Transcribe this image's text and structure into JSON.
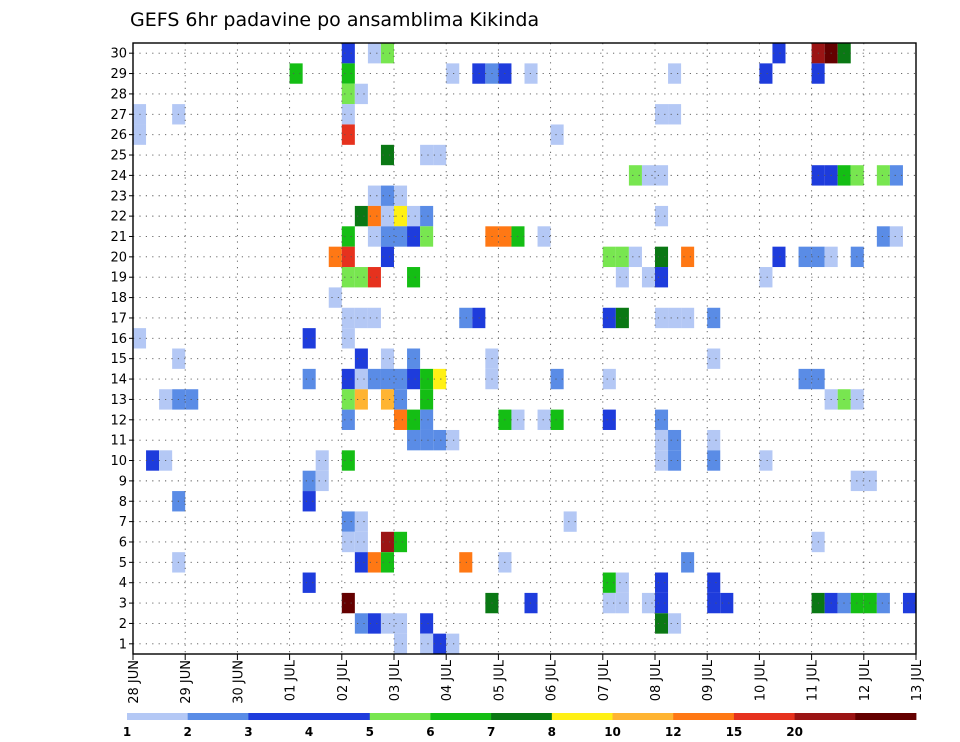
{
  "chart_data": {
    "type": "heatmap",
    "title": "GEFS 6hr padavine po ansamblima Kikinda",
    "x_axis": {
      "ticks": [
        "28 JUN",
        "29 JUN",
        "30 JUN",
        "01 JUL",
        "02 JUL",
        "03 JUL",
        "04 JUL",
        "05 JUL",
        "06 JUL",
        "07 JUL",
        "08 JUL",
        "09 JUL",
        "10 JUL",
        "11 JUL",
        "12 JUL",
        "13 JUL"
      ],
      "steps_per_day": 4,
      "range_steps": [
        0,
        60
      ]
    },
    "y_axis": {
      "ticks": [
        1,
        2,
        3,
        4,
        5,
        6,
        7,
        8,
        9,
        10,
        11,
        12,
        13,
        14,
        15,
        16,
        17,
        18,
        19,
        20,
        21,
        22,
        23,
        24,
        25,
        26,
        27,
        28,
        29,
        30
      ],
      "label": "",
      "range": [
        0.5,
        30.5
      ]
    },
    "grid": true,
    "legend": {
      "placement": "bottom",
      "labels": [
        "1",
        "2",
        "3",
        "4",
        "5",
        "6",
        "7",
        "8",
        "10",
        "12",
        "15",
        "20"
      ],
      "colors": [
        "#b4c8f5",
        "#5a8ce6",
        "#1e3cdc",
        "#1e3cdc",
        "#78e650",
        "#14be14",
        "#0a7814",
        "#fff014",
        "#ffb432",
        "#ff7814",
        "#e6321e",
        "#9b1414",
        "#640000"
      ]
    },
    "cells": [
      {
        "m": 30,
        "s": 16,
        "c": 2
      },
      {
        "m": 30,
        "s": 18,
        "c": 0
      },
      {
        "m": 30,
        "s": 19,
        "c": 4
      },
      {
        "m": 30,
        "s": 49,
        "c": 2
      },
      {
        "m": 30,
        "s": 52,
        "c": 11
      },
      {
        "m": 30,
        "s": 53,
        "c": 12
      },
      {
        "m": 30,
        "s": 54,
        "c": 6
      },
      {
        "m": 29,
        "s": 12,
        "c": 5
      },
      {
        "m": 29,
        "s": 16,
        "c": 5
      },
      {
        "m": 29,
        "s": 24,
        "c": 0
      },
      {
        "m": 29,
        "s": 26,
        "c": 2
      },
      {
        "m": 29,
        "s": 27,
        "c": 1
      },
      {
        "m": 29,
        "s": 28,
        "c": 2
      },
      {
        "m": 29,
        "s": 30,
        "c": 0
      },
      {
        "m": 29,
        "s": 41,
        "c": 0
      },
      {
        "m": 29,
        "s": 48,
        "c": 2
      },
      {
        "m": 29,
        "s": 52,
        "c": 2
      },
      {
        "m": 28,
        "s": 16,
        "c": 4
      },
      {
        "m": 28,
        "s": 17,
        "c": 0
      },
      {
        "m": 27,
        "s": 0,
        "c": 0
      },
      {
        "m": 27,
        "s": 3,
        "c": 0
      },
      {
        "m": 27,
        "s": 16,
        "c": 0
      },
      {
        "m": 27,
        "s": 40,
        "c": 0
      },
      {
        "m": 27,
        "s": 41,
        "c": 0
      },
      {
        "m": 26,
        "s": 0,
        "c": 0
      },
      {
        "m": 26,
        "s": 16,
        "c": 10
      },
      {
        "m": 26,
        "s": 32,
        "c": 0
      },
      {
        "m": 25,
        "s": 19,
        "c": 6
      },
      {
        "m": 25,
        "s": 22,
        "c": 0
      },
      {
        "m": 25,
        "s": 23,
        "c": 0
      },
      {
        "m": 25,
        "s": 60,
        "c": 5
      },
      {
        "m": 24,
        "s": 38,
        "c": 4
      },
      {
        "m": 24,
        "s": 39,
        "c": 0
      },
      {
        "m": 24,
        "s": 40,
        "c": 0
      },
      {
        "m": 24,
        "s": 52,
        "c": 2
      },
      {
        "m": 24,
        "s": 53,
        "c": 2
      },
      {
        "m": 24,
        "s": 54,
        "c": 5
      },
      {
        "m": 24,
        "s": 55,
        "c": 4
      },
      {
        "m": 24,
        "s": 57,
        "c": 4
      },
      {
        "m": 24,
        "s": 58,
        "c": 1
      },
      {
        "m": 23,
        "s": 18,
        "c": 0
      },
      {
        "m": 23,
        "s": 19,
        "c": 1
      },
      {
        "m": 23,
        "s": 20,
        "c": 0
      },
      {
        "m": 22,
        "s": 17,
        "c": 6
      },
      {
        "m": 22,
        "s": 18,
        "c": 9
      },
      {
        "m": 22,
        "s": 19,
        "c": 0
      },
      {
        "m": 22,
        "s": 20,
        "c": 7
      },
      {
        "m": 22,
        "s": 21,
        "c": 0
      },
      {
        "m": 22,
        "s": 22,
        "c": 1
      },
      {
        "m": 22,
        "s": 40,
        "c": 0
      },
      {
        "m": 21,
        "s": 16,
        "c": 5
      },
      {
        "m": 21,
        "s": 18,
        "c": 0
      },
      {
        "m": 21,
        "s": 19,
        "c": 1
      },
      {
        "m": 21,
        "s": 20,
        "c": 1
      },
      {
        "m": 21,
        "s": 21,
        "c": 2
      },
      {
        "m": 21,
        "s": 22,
        "c": 4
      },
      {
        "m": 21,
        "s": 27,
        "c": 9
      },
      {
        "m": 21,
        "s": 28,
        "c": 9
      },
      {
        "m": 21,
        "s": 29,
        "c": 5
      },
      {
        "m": 21,
        "s": 31,
        "c": 0
      },
      {
        "m": 21,
        "s": 57,
        "c": 1
      },
      {
        "m": 21,
        "s": 58,
        "c": 0
      },
      {
        "m": 20,
        "s": 15,
        "c": 9
      },
      {
        "m": 20,
        "s": 16,
        "c": 10
      },
      {
        "m": 20,
        "s": 19,
        "c": 2
      },
      {
        "m": 20,
        "s": 36,
        "c": 4
      },
      {
        "m": 20,
        "s": 37,
        "c": 4
      },
      {
        "m": 20,
        "s": 38,
        "c": 0
      },
      {
        "m": 20,
        "s": 40,
        "c": 6
      },
      {
        "m": 20,
        "s": 42,
        "c": 9
      },
      {
        "m": 20,
        "s": 49,
        "c": 2
      },
      {
        "m": 20,
        "s": 51,
        "c": 1
      },
      {
        "m": 20,
        "s": 52,
        "c": 1
      },
      {
        "m": 20,
        "s": 53,
        "c": 0
      },
      {
        "m": 20,
        "s": 55,
        "c": 1
      },
      {
        "m": 19,
        "s": 16,
        "c": 4
      },
      {
        "m": 19,
        "s": 17,
        "c": 4
      },
      {
        "m": 19,
        "s": 18,
        "c": 10
      },
      {
        "m": 19,
        "s": 21,
        "c": 5
      },
      {
        "m": 19,
        "s": 37,
        "c": 0
      },
      {
        "m": 19,
        "s": 39,
        "c": 0
      },
      {
        "m": 19,
        "s": 40,
        "c": 2
      },
      {
        "m": 19,
        "s": 48,
        "c": 0
      },
      {
        "m": 18,
        "s": 15,
        "c": 0
      },
      {
        "m": 17,
        "s": 16,
        "c": 0
      },
      {
        "m": 17,
        "s": 17,
        "c": 0
      },
      {
        "m": 17,
        "s": 18,
        "c": 0
      },
      {
        "m": 17,
        "s": 25,
        "c": 1
      },
      {
        "m": 17,
        "s": 26,
        "c": 2
      },
      {
        "m": 17,
        "s": 36,
        "c": 2
      },
      {
        "m": 17,
        "s": 37,
        "c": 6
      },
      {
        "m": 17,
        "s": 40,
        "c": 0
      },
      {
        "m": 17,
        "s": 41,
        "c": 0
      },
      {
        "m": 17,
        "s": 42,
        "c": 0
      },
      {
        "m": 17,
        "s": 44,
        "c": 1
      },
      {
        "m": 16,
        "s": 0,
        "c": 0
      },
      {
        "m": 16,
        "s": 13,
        "c": 2
      },
      {
        "m": 16,
        "s": 16,
        "c": 0
      },
      {
        "m": 15,
        "s": 3,
        "c": 0
      },
      {
        "m": 15,
        "s": 17,
        "c": 2
      },
      {
        "m": 15,
        "s": 19,
        "c": 0
      },
      {
        "m": 15,
        "s": 21,
        "c": 1
      },
      {
        "m": 15,
        "s": 27,
        "c": 0
      },
      {
        "m": 15,
        "s": 44,
        "c": 0
      },
      {
        "m": 14,
        "s": 13,
        "c": 1
      },
      {
        "m": 14,
        "s": 16,
        "c": 2
      },
      {
        "m": 14,
        "s": 17,
        "c": 0
      },
      {
        "m": 14,
        "s": 18,
        "c": 1
      },
      {
        "m": 14,
        "s": 19,
        "c": 1
      },
      {
        "m": 14,
        "s": 20,
        "c": 1
      },
      {
        "m": 14,
        "s": 21,
        "c": 2
      },
      {
        "m": 14,
        "s": 22,
        "c": 5
      },
      {
        "m": 14,
        "s": 23,
        "c": 7
      },
      {
        "m": 14,
        "s": 27,
        "c": 0
      },
      {
        "m": 14,
        "s": 32,
        "c": 1
      },
      {
        "m": 14,
        "s": 36,
        "c": 0
      },
      {
        "m": 14,
        "s": 51,
        "c": 1
      },
      {
        "m": 14,
        "s": 52,
        "c": 1
      },
      {
        "m": 13,
        "s": 2,
        "c": 0
      },
      {
        "m": 13,
        "s": 3,
        "c": 1
      },
      {
        "m": 13,
        "s": 4,
        "c": 1
      },
      {
        "m": 13,
        "s": 16,
        "c": 4
      },
      {
        "m": 13,
        "s": 17,
        "c": 8
      },
      {
        "m": 13,
        "s": 19,
        "c": 8
      },
      {
        "m": 13,
        "s": 20,
        "c": 1
      },
      {
        "m": 13,
        "s": 22,
        "c": 5
      },
      {
        "m": 13,
        "s": 53,
        "c": 0
      },
      {
        "m": 13,
        "s": 54,
        "c": 4
      },
      {
        "m": 13,
        "s": 55,
        "c": 0
      },
      {
        "m": 12,
        "s": 16,
        "c": 1
      },
      {
        "m": 12,
        "s": 20,
        "c": 9
      },
      {
        "m": 12,
        "s": 21,
        "c": 5
      },
      {
        "m": 12,
        "s": 22,
        "c": 1
      },
      {
        "m": 12,
        "s": 28,
        "c": 5
      },
      {
        "m": 12,
        "s": 29,
        "c": 0
      },
      {
        "m": 12,
        "s": 31,
        "c": 0
      },
      {
        "m": 12,
        "s": 32,
        "c": 5
      },
      {
        "m": 12,
        "s": 36,
        "c": 2
      },
      {
        "m": 12,
        "s": 40,
        "c": 1
      },
      {
        "m": 11,
        "s": 21,
        "c": 1
      },
      {
        "m": 11,
        "s": 22,
        "c": 1
      },
      {
        "m": 11,
        "s": 23,
        "c": 1
      },
      {
        "m": 11,
        "s": 24,
        "c": 0
      },
      {
        "m": 11,
        "s": 40,
        "c": 0
      },
      {
        "m": 11,
        "s": 41,
        "c": 1
      },
      {
        "m": 11,
        "s": 44,
        "c": 0
      },
      {
        "m": 10,
        "s": 1,
        "c": 2
      },
      {
        "m": 10,
        "s": 2,
        "c": 0
      },
      {
        "m": 10,
        "s": 14,
        "c": 0
      },
      {
        "m": 10,
        "s": 16,
        "c": 5
      },
      {
        "m": 10,
        "s": 40,
        "c": 0
      },
      {
        "m": 10,
        "s": 41,
        "c": 1
      },
      {
        "m": 10,
        "s": 44,
        "c": 1
      },
      {
        "m": 10,
        "s": 48,
        "c": 0
      },
      {
        "m": 9,
        "s": 13,
        "c": 1
      },
      {
        "m": 9,
        "s": 14,
        "c": 0
      },
      {
        "m": 9,
        "s": 55,
        "c": 0
      },
      {
        "m": 9,
        "s": 56,
        "c": 0
      },
      {
        "m": 9,
        "s": 60,
        "c": 1
      },
      {
        "m": 8,
        "s": 3,
        "c": 1
      },
      {
        "m": 8,
        "s": 13,
        "c": 2
      },
      {
        "m": 7,
        "s": 16,
        "c": 1
      },
      {
        "m": 7,
        "s": 17,
        "c": 0
      },
      {
        "m": 7,
        "s": 33,
        "c": 0
      },
      {
        "m": 6,
        "s": 16,
        "c": 0
      },
      {
        "m": 6,
        "s": 17,
        "c": 0
      },
      {
        "m": 6,
        "s": 19,
        "c": 11
      },
      {
        "m": 6,
        "s": 20,
        "c": 5
      },
      {
        "m": 6,
        "s": 52,
        "c": 0
      },
      {
        "m": 5,
        "s": 3,
        "c": 0
      },
      {
        "m": 5,
        "s": 17,
        "c": 2
      },
      {
        "m": 5,
        "s": 18,
        "c": 9
      },
      {
        "m": 5,
        "s": 19,
        "c": 5
      },
      {
        "m": 5,
        "s": 25,
        "c": 9
      },
      {
        "m": 5,
        "s": 28,
        "c": 0
      },
      {
        "m": 5,
        "s": 42,
        "c": 1
      },
      {
        "m": 4,
        "s": 13,
        "c": 2
      },
      {
        "m": 4,
        "s": 36,
        "c": 5
      },
      {
        "m": 4,
        "s": 37,
        "c": 0
      },
      {
        "m": 4,
        "s": 40,
        "c": 2
      },
      {
        "m": 4,
        "s": 44,
        "c": 2
      },
      {
        "m": 3,
        "s": 16,
        "c": 12
      },
      {
        "m": 3,
        "s": 27,
        "c": 6
      },
      {
        "m": 3,
        "s": 30,
        "c": 2
      },
      {
        "m": 3,
        "s": 36,
        "c": 0
      },
      {
        "m": 3,
        "s": 37,
        "c": 0
      },
      {
        "m": 3,
        "s": 39,
        "c": 0
      },
      {
        "m": 3,
        "s": 40,
        "c": 2
      },
      {
        "m": 3,
        "s": 44,
        "c": 2
      },
      {
        "m": 3,
        "s": 45,
        "c": 2
      },
      {
        "m": 3,
        "s": 52,
        "c": 6
      },
      {
        "m": 3,
        "s": 53,
        "c": 2
      },
      {
        "m": 3,
        "s": 54,
        "c": 1
      },
      {
        "m": 3,
        "s": 55,
        "c": 5
      },
      {
        "m": 3,
        "s": 56,
        "c": 5
      },
      {
        "m": 3,
        "s": 57,
        "c": 1
      },
      {
        "m": 3,
        "s": 59,
        "c": 2
      },
      {
        "m": 2,
        "s": 17,
        "c": 1
      },
      {
        "m": 2,
        "s": 18,
        "c": 2
      },
      {
        "m": 2,
        "s": 19,
        "c": 0
      },
      {
        "m": 2,
        "s": 20,
        "c": 0
      },
      {
        "m": 2,
        "s": 22,
        "c": 2
      },
      {
        "m": 2,
        "s": 40,
        "c": 6
      },
      {
        "m": 2,
        "s": 41,
        "c": 0
      },
      {
        "m": 1,
        "s": 20,
        "c": 0
      },
      {
        "m": 1,
        "s": 22,
        "c": 0
      },
      {
        "m": 1,
        "s": 23,
        "c": 2
      },
      {
        "m": 1,
        "s": 24,
        "c": 0
      }
    ]
  }
}
